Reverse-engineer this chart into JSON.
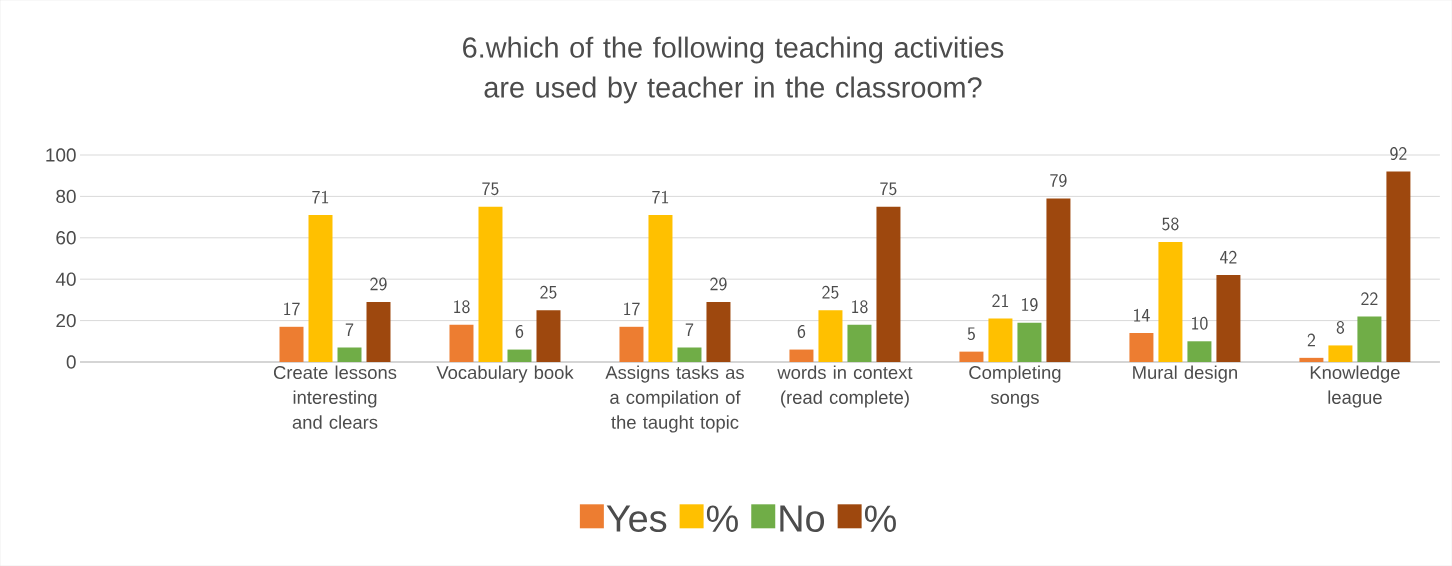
{
  "chart_data": {
    "type": "bar",
    "title": "6.which of the following teaching activities are used by teacher  in the classroom?",
    "categories": [
      null,
      "Create lessons interesting and clears",
      "Vocabulary book",
      "Assigns tasks as a compilation of the taught topic",
      "words in context (read complete)",
      "Completing songs",
      "Mural design",
      "Knowledge league"
    ],
    "series": [
      {
        "name": "Yes",
        "color": "#ed7d31",
        "values": [
          null,
          17,
          18,
          17,
          6,
          5,
          14,
          2
        ]
      },
      {
        "name": "%",
        "color": "#ffc000",
        "values": [
          null,
          71,
          75,
          71,
          25,
          21,
          58,
          8
        ]
      },
      {
        "name": "No",
        "color": "#70ad47",
        "values": [
          null,
          7,
          6,
          7,
          18,
          19,
          10,
          22
        ]
      },
      {
        "name": "%",
        "color": "#9e480e",
        "values": [
          null,
          29,
          25,
          29,
          75,
          79,
          42,
          92
        ]
      }
    ],
    "ylim": [
      0,
      100
    ],
    "yticks": [
      0,
      20,
      40,
      60,
      80,
      100
    ],
    "grid": "y",
    "legend": "bottom",
    "data_labels": true
  }
}
